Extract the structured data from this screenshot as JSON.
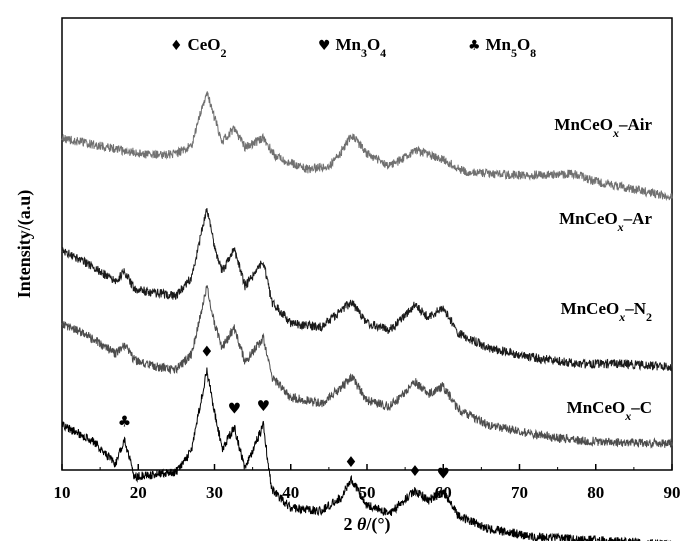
{
  "chart_data": {
    "type": "line",
    "title": "",
    "xlabel": "2 θ/(°)",
    "ylabel": "Intensity/(a.u)",
    "xlim": [
      10,
      90
    ],
    "xticks": [
      "10",
      "20",
      "30",
      "40",
      "50",
      "60",
      "70",
      "80",
      "90"
    ],
    "yticks_shown": false,
    "grid": false,
    "legend_position": "top",
    "legend": [
      {
        "symbol": "♦",
        "base": "CeO",
        "sub": "2",
        "base2": "",
        "sub2": ""
      },
      {
        "symbol": "♥",
        "base": "Mn",
        "sub": "3",
        "base2": "O",
        "sub2": "4"
      },
      {
        "symbol": "♣",
        "base": "Mn",
        "sub": "5",
        "base2": "O",
        "sub2": "8"
      }
    ],
    "series": [
      {
        "name": "MnCeOx–Air",
        "label_base": "MnCeO",
        "label_sub": "x",
        "label_suffix": "–Air",
        "label_suffix_sub": "",
        "color": "#707070",
        "x": [
          10,
          14,
          18,
          22,
          25,
          27,
          28,
          29,
          30,
          31,
          32.5,
          34,
          36.4,
          38,
          42,
          45,
          46.5,
          48,
          50,
          53,
          56.5,
          60,
          63,
          70,
          77,
          80,
          85,
          90
        ],
        "y": [
          98,
          94,
          90,
          87,
          88,
          93,
          112,
          128,
          111,
          96,
          104,
          92,
          98,
          86,
          78,
          80,
          88,
          100,
          88,
          80,
          90,
          84,
          76,
          74,
          75,
          70,
          65,
          60
        ]
      },
      {
        "name": "MnCeOx–Ar",
        "label_base": "MnCeO",
        "label_sub": "x",
        "label_suffix": "–Ar",
        "label_suffix_sub": "",
        "color": "#1a1a1a",
        "x": [
          10,
          14,
          17,
          18.2,
          19.5,
          22,
          25,
          27,
          28,
          29,
          30,
          31,
          32.6,
          34,
          36.4,
          37.5,
          40,
          44,
          46.5,
          48,
          50,
          53,
          56.3,
          58,
          60,
          62,
          66,
          72,
          78,
          84,
          90
        ],
        "y": [
          95,
          85,
          75,
          82,
          70,
          68,
          66,
          78,
          100,
          122,
          98,
          82,
          96,
          72,
          88,
          62,
          48,
          46,
          56,
          62,
          48,
          44,
          60,
          52,
          58,
          42,
          32,
          26,
          22,
          22,
          20
        ]
      },
      {
        "name": "MnCeOx–N2",
        "label_base": "MnCeO",
        "label_sub": "x",
        "label_suffix": "–N",
        "label_suffix_sub": "2",
        "color": "#4d4d4d",
        "x": [
          10,
          14,
          17,
          18.2,
          19.5,
          22,
          25,
          27,
          28,
          29,
          30,
          31,
          32.6,
          34,
          36.4,
          37.5,
          40,
          44,
          46.5,
          48,
          50,
          53,
          56.3,
          58,
          60,
          62,
          66,
          72,
          78,
          84,
          90
        ],
        "y": [
          100,
          90,
          80,
          86,
          76,
          72,
          70,
          80,
          102,
          123,
          100,
          84,
          97,
          75,
          90,
          65,
          52,
          48,
          58,
          65,
          50,
          46,
          62,
          54,
          59,
          44,
          34,
          28,
          24,
          23,
          22
        ]
      },
      {
        "name": "MnCeOx–C",
        "label_base": "MnCeO",
        "label_sub": "x",
        "label_suffix": "–C",
        "label_suffix_sub": "",
        "color": "#000000",
        "x": [
          10,
          14,
          17,
          18.2,
          19.5,
          22,
          25,
          27,
          28,
          29,
          30,
          31,
          32.6,
          34,
          36.4,
          37.5,
          40,
          44,
          46.5,
          48,
          50,
          53,
          56.3,
          58,
          60,
          62,
          66,
          72,
          78,
          84,
          90
        ],
        "y": [
          100,
          88,
          70,
          88,
          60,
          62,
          64,
          80,
          112,
          142,
          110,
          82,
          98,
          66,
          100,
          50,
          36,
          34,
          44,
          58,
          38,
          32,
          50,
          42,
          48,
          30,
          20,
          14,
          12,
          10,
          8
        ]
      }
    ],
    "annotations": [
      {
        "symbol": "♣",
        "x": 18.2,
        "series": "MnCeOx–C"
      },
      {
        "symbol": "♦",
        "x": 29.0,
        "series": "MnCeOx–C"
      },
      {
        "symbol": "♥",
        "x": 32.6,
        "series": "MnCeOx–C"
      },
      {
        "symbol": "♥",
        "x": 36.4,
        "series": "MnCeOx–C"
      },
      {
        "symbol": "♦",
        "x": 47.9,
        "series": "MnCeOx–C"
      },
      {
        "symbol": "♦",
        "x": 56.3,
        "series": "MnCeOx–C"
      },
      {
        "symbol": "♥",
        "x": 60.0,
        "series": "MnCeOx–C"
      }
    ]
  }
}
